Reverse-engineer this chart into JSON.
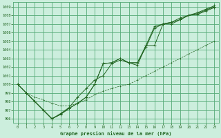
{
  "title": "Graphe pression niveau de la mer (hPa)",
  "bg_color": "#cceedd",
  "grid_color": "#55aa77",
  "line_color": "#226622",
  "xlim": [
    -0.5,
    23.5
  ],
  "ylim": [
    995.5,
    1009.5
  ],
  "xticks": [
    0,
    1,
    2,
    3,
    4,
    5,
    6,
    7,
    8,
    9,
    10,
    11,
    12,
    13,
    14,
    15,
    16,
    17,
    18,
    19,
    20,
    21,
    22,
    23
  ],
  "yticks": [
    996,
    997,
    998,
    999,
    1000,
    1001,
    1002,
    1003,
    1004,
    1005,
    1006,
    1007,
    1008,
    1009
  ],
  "hours": [
    0,
    1,
    2,
    3,
    4,
    5,
    6,
    7,
    8,
    9,
    10,
    11,
    12,
    13,
    14,
    15,
    16,
    17,
    18,
    19,
    20,
    21,
    22,
    23
  ],
  "s1": [
    1000.0,
    999.0,
    998.0,
    997.0,
    996.0,
    996.6,
    997.3,
    998.5,
    999.5,
    1000.5,
    1001.0,
    1002.4,
    1002.8,
    1002.5,
    1002.5,
    1004.5,
    1004.5,
    1007.0,
    1007.0,
    1007.5,
    1008.0,
    1008.1,
    1008.5,
    1008.9
  ],
  "s2": [
    1000.0,
    999.0,
    998.0,
    997.0,
    996.0,
    996.5,
    997.2,
    997.8,
    998.5,
    1000.0,
    1002.4,
    1002.5,
    1003.0,
    1002.5,
    1002.5,
    1004.3,
    1006.5,
    1007.0,
    1007.2,
    1007.5,
    1008.0,
    1008.2,
    1008.6,
    1009.0
  ],
  "s3": [
    1000.0,
    999.0,
    998.0,
    997.0,
    996.0,
    996.5,
    997.2,
    997.8,
    998.5,
    1000.0,
    1002.4,
    1002.5,
    1003.0,
    1002.5,
    1002.2,
    1004.5,
    1006.7,
    1007.0,
    1007.2,
    1007.7,
    1008.0,
    1008.3,
    1008.7,
    1009.1
  ],
  "s_thin": [
    1000.0,
    999.0,
    998.5,
    998.2,
    997.8,
    997.5,
    997.5,
    997.8,
    998.2,
    998.8,
    999.2,
    999.5,
    999.8,
    1000.0,
    1000.5,
    1001.0,
    1001.5,
    1002.0,
    1002.5,
    1003.0,
    1003.5,
    1004.0,
    1004.5,
    1005.0
  ]
}
